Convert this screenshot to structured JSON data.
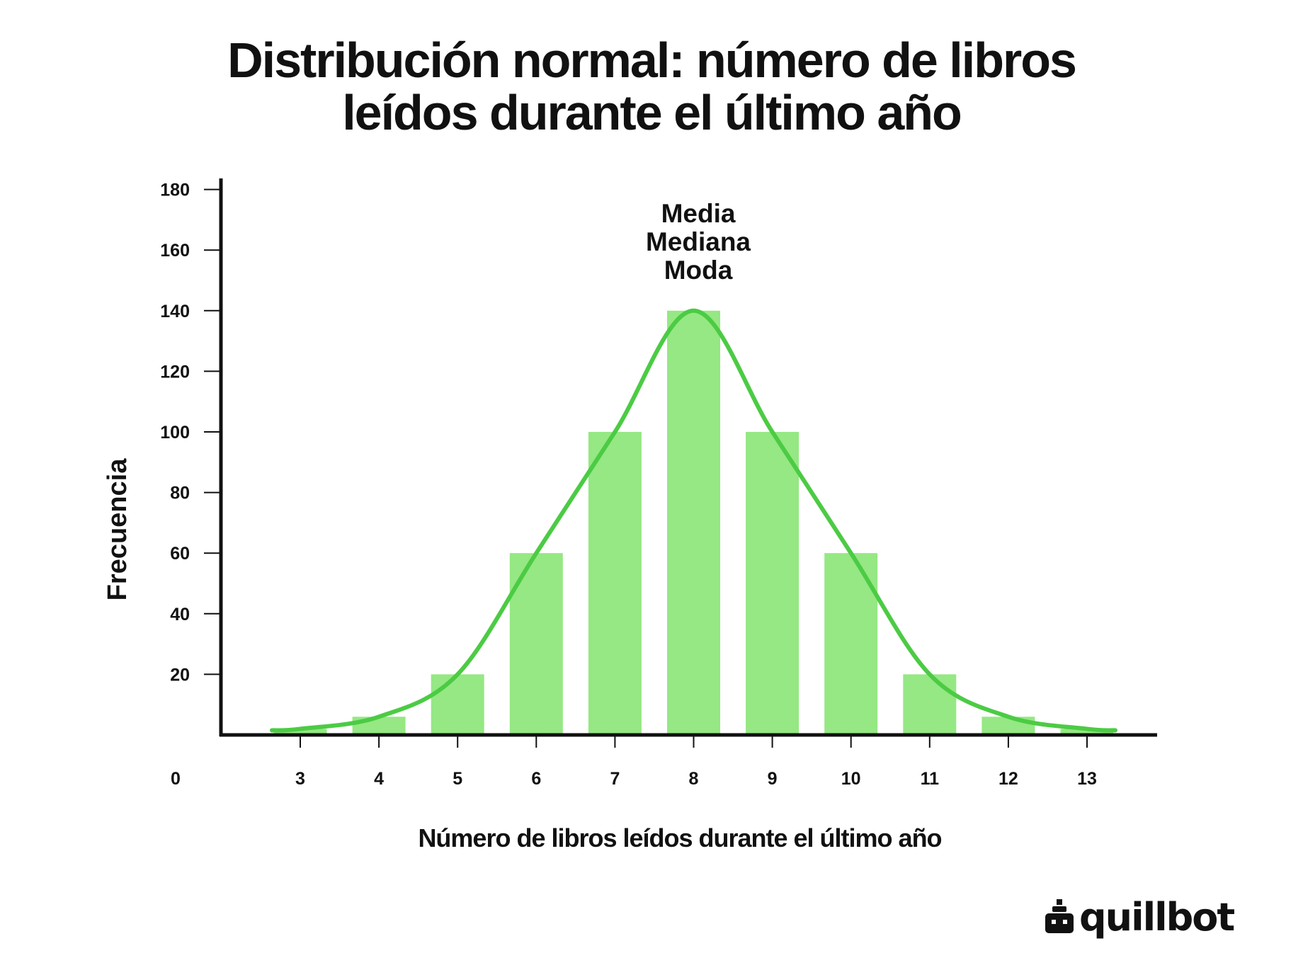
{
  "chart_data": {
    "type": "bar",
    "title_lines": [
      "Distribución normal: número de libros",
      "leídos durante el último año"
    ],
    "xlabel": "Número de libros leídos durante el último año",
    "ylabel": "Frecuencia",
    "x_origin_label": "0",
    "categories": [
      "3",
      "4",
      "5",
      "6",
      "7",
      "8",
      "9",
      "10",
      "11",
      "12",
      "13"
    ],
    "values": [
      2,
      6,
      20,
      60,
      100,
      140,
      100,
      60,
      20,
      6,
      2
    ],
    "y_ticks": [
      "20",
      "40",
      "60",
      "80",
      "100",
      "120",
      "140",
      "160",
      "180"
    ],
    "ylim": [
      0,
      180
    ],
    "annotation_lines": [
      "Media",
      "Mediana",
      "Moda"
    ],
    "curve": "normal",
    "grid": false,
    "bar_color": "#95e883",
    "curve_color": "#4ccb44",
    "axis_color": "#111111"
  },
  "brand": {
    "name": "quillbot"
  }
}
